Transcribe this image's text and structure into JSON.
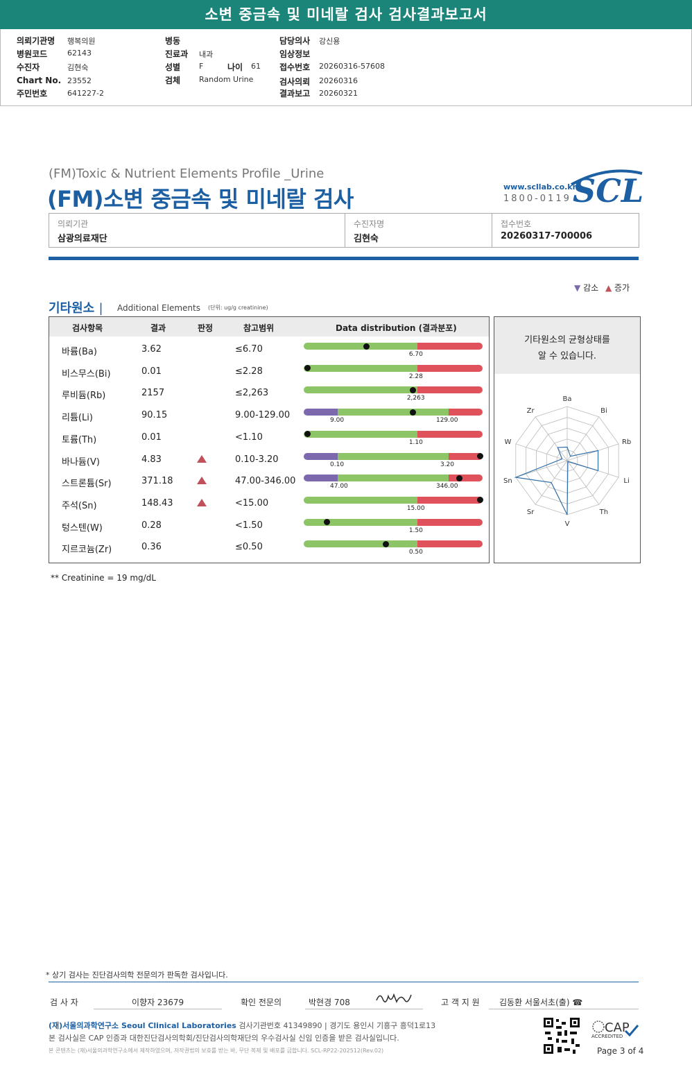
{
  "banner": {
    "title": "소변 중금속 및 미네랄 검사 검사결과보고서"
  },
  "header": {
    "fields": [
      {
        "label": "의뢰기관명",
        "value": "행복의원"
      },
      {
        "label": "병원코드",
        "value": "62143"
      },
      {
        "label": "수진자",
        "value": "김현숙"
      },
      {
        "label": "Chart No.",
        "value": "23552"
      },
      {
        "label": "주민번호",
        "value": "641227-2"
      },
      {
        "label": "병동",
        "value": ""
      },
      {
        "label": "진료과",
        "value": "내과"
      },
      {
        "label": "성별",
        "value": "F"
      },
      {
        "label": "나이",
        "value": "61"
      },
      {
        "label": "검체",
        "value": "Random Urine"
      },
      {
        "label": "담당의사",
        "value": "강신용"
      },
      {
        "label": "임상정보",
        "value": ""
      },
      {
        "label": "접수번호",
        "value": "20260316-57608"
      },
      {
        "label": "검사의뢰",
        "value": "20260316"
      },
      {
        "label": "결과보고",
        "value": "20260321"
      }
    ]
  },
  "report": {
    "title_en": "(FM)Toxic & Nutrient Elements Profile _Urine",
    "title_ko": "(FM)소변 중금속 및 미네랄 검사",
    "logo_web": "www.scllab.co.kr",
    "logo_tel": "1800-0119",
    "logo_text": "SCL"
  },
  "info": [
    {
      "label": "의뢰기관",
      "value": "삼광의료재단"
    },
    {
      "label": "수진자명",
      "value": "김현숙"
    },
    {
      "label": "접수번호",
      "value": "20260317-700006"
    }
  ],
  "legend": {
    "decrease": "감소",
    "increase": "증가"
  },
  "section": {
    "title": "기타원소",
    "subtitle": "Additional Elements",
    "unit": "(단위: ug/g creatinine)"
  },
  "table": {
    "headers": [
      "검사항목",
      "결과",
      "판정",
      "참고범위",
      "Data distribution (결과분포)"
    ],
    "rows": [
      {
        "name": "바륨(Ba)",
        "result": "3.62",
        "flag": "",
        "ref": "≤6.70",
        "low": null,
        "high": "6.70",
        "lowpos": null,
        "highpos": 0.635,
        "dotpos": 0.35
      },
      {
        "name": "비스무스(Bi)",
        "result": "0.01",
        "flag": "",
        "ref": "≤2.28",
        "low": null,
        "high": "2.28",
        "lowpos": null,
        "highpos": 0.635,
        "dotpos": 0.02
      },
      {
        "name": "루비듐(Rb)",
        "result": "2157",
        "flag": "",
        "ref": "≤2,263",
        "low": null,
        "high": "2,263",
        "lowpos": null,
        "highpos": 0.635,
        "dotpos": 0.61
      },
      {
        "name": "리튬(Li)",
        "result": "90.15",
        "flag": "",
        "ref": "9.00-129.00",
        "low": "9.00",
        "high": "129.00",
        "lowpos": 0.19,
        "highpos": 0.81,
        "dotpos": 0.61
      },
      {
        "name": "토륨(Th)",
        "result": "0.01",
        "flag": "",
        "ref": "<1.10",
        "low": null,
        "high": "1.10",
        "lowpos": null,
        "highpos": 0.635,
        "dotpos": 0.02
      },
      {
        "name": "바나듐(V)",
        "result": "4.83",
        "flag": "up",
        "ref": "0.10-3.20",
        "low": "0.10",
        "high": "3.20",
        "lowpos": 0.19,
        "highpos": 0.81,
        "dotpos": 0.985
      },
      {
        "name": "스트론튬(Sr)",
        "result": "371.18",
        "flag": "up",
        "ref": "47.00-346.00",
        "low": "47.00",
        "high": "346.00",
        "lowpos": 0.19,
        "highpos": 0.81,
        "dotpos": 0.87
      },
      {
        "name": "주석(Sn)",
        "result": "148.43",
        "flag": "up",
        "ref": "<15.00",
        "low": null,
        "high": "15.00",
        "lowpos": null,
        "highpos": 0.635,
        "dotpos": 0.985
      },
      {
        "name": "텅스텐(W)",
        "result": "0.28",
        "flag": "",
        "ref": "<1.50",
        "low": null,
        "high": "1.50",
        "lowpos": null,
        "highpos": 0.635,
        "dotpos": 0.13
      },
      {
        "name": "지르코늄(Zr)",
        "result": "0.36",
        "flag": "",
        "ref": "≤0.50",
        "low": null,
        "high": "0.50",
        "lowpos": null,
        "highpos": 0.635,
        "dotpos": 0.46
      }
    ]
  },
  "radar": {
    "title_line1": "기타원소의 균형상태를",
    "title_line2": "알 수 있습니다.",
    "axes": [
      "Ba",
      "Bi",
      "Rb",
      "Li",
      "Th",
      "V",
      "Sr",
      "Sn",
      "W",
      "Zr"
    ],
    "values": [
      0.25,
      0.1,
      0.6,
      0.6,
      0.02,
      1.0,
      0.5,
      1.0,
      0.1,
      0.3
    ]
  },
  "colors": {
    "low": "#7b68ad",
    "normal": "#8cc466",
    "high": "#e0525b",
    "accent": "#1d5fa3",
    "banner": "#1a8578"
  },
  "notes": {
    "creatinine": "** Creatinine = 19 mg/dL"
  },
  "footer": {
    "note": "* 상기 검사는 진단검사의학 전문의가 판독한 검사입니다.",
    "sig1_label": "검  사  자",
    "sig1_value": "이향자 23679",
    "sig2_label": "확인 전문의",
    "sig2_value": "박현경 708",
    "sig3_label": "고 객 지 원",
    "sig3_value": "김동환 서울서초(출) ☎",
    "org_name": "(재)서울의과학연구소 Seoul Clinical Laboratories",
    "org_info": "검사기관번호 41349890 | 경기도 용인시 기흥구 흥덕1로13",
    "cert": "본 검사실은 CAP 인증과 대한진단검사의학회/진단검사의학재단의 우수검사실 신임 인증을 받은 검사실입니다.",
    "copyright": "본 콘텐츠는 (재)서울의과학연구소에서 제작하였으며, 저작권법의 보호를 받는 바, 무단 복제 및 배포를 금합니다.  SCL-RP22-202512(Rev.02)",
    "cap": "CAP",
    "cap_sub": "ACCREDITED",
    "page": "Page 3 of 4"
  }
}
